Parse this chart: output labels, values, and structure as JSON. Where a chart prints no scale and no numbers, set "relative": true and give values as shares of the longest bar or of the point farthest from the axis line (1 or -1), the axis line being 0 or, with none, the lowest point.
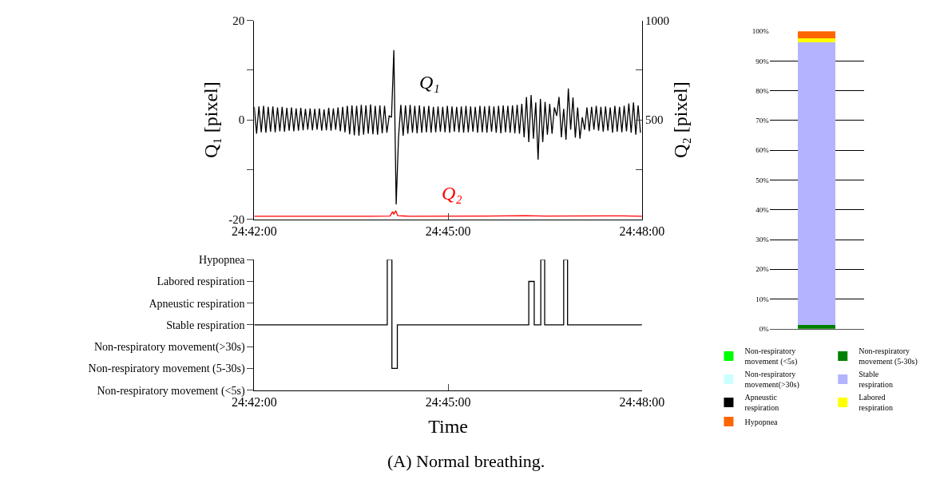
{
  "chart_data": [
    {
      "type": "line",
      "ylabel": "Q₁ [pixel]",
      "y2label": "Q₂ [pixel]",
      "xlim": [
        24.7,
        24.8
      ],
      "xticks": [
        {
          "value": 24.7,
          "label": "24:42:00"
        },
        {
          "value": 24.75,
          "label": "24:45:00"
        },
        {
          "value": 24.8,
          "label": "24:48:00"
        }
      ],
      "ylim": [
        -20,
        20
      ],
      "yticks": [
        -20,
        {
          "value": -10,
          "label": null
        },
        0,
        {
          "value": 10,
          "label": null
        },
        20
      ],
      "y2lim": [
        0,
        1000
      ],
      "y2ticks": [
        {
          "value": 0,
          "label": null
        },
        {
          "value": 250,
          "label": null
        },
        500,
        {
          "value": 750,
          "label": null
        },
        1000
      ],
      "series": [
        {
          "name": "Q₁",
          "color": "#000000",
          "x": [
            24.7,
            24.7006,
            24.7012,
            24.7018,
            24.7024,
            24.703,
            24.7036,
            24.7042,
            24.7048,
            24.7054,
            24.706,
            24.7066,
            24.7072,
            24.7078,
            24.7084,
            24.709,
            24.7096,
            24.7102,
            24.7108,
            24.7114,
            24.712,
            24.7126,
            24.7132,
            24.7138,
            24.7144,
            24.715,
            24.7156,
            24.7162,
            24.7168,
            24.7174,
            24.718,
            24.7186,
            24.7192,
            24.7198,
            24.7204,
            24.721,
            24.7216,
            24.7222,
            24.7228,
            24.7234,
            24.724,
            24.7246,
            24.7252,
            24.7258,
            24.7264,
            24.727,
            24.7276,
            24.7282,
            24.7288,
            24.7294,
            24.73,
            24.7306,
            24.7312,
            24.7318,
            24.7324,
            24.733,
            24.7336,
            24.7342,
            24.7348,
            24.7354,
            24.736,
            24.7366,
            24.7372,
            24.7378,
            24.7384,
            24.739,
            24.7396,
            24.7402,
            24.7408,
            24.7414,
            24.742,
            24.7426,
            24.7432,
            24.7438,
            24.7444,
            24.745,
            24.7456,
            24.7462,
            24.7468,
            24.7474,
            24.748,
            24.7486,
            24.7492,
            24.7498,
            24.7504,
            24.751,
            24.7516,
            24.7522,
            24.7528,
            24.7534,
            24.754,
            24.7546,
            24.7552,
            24.7558,
            24.7564,
            24.757,
            24.7576,
            24.7582,
            24.7588,
            24.7594,
            24.76,
            24.7606,
            24.7612,
            24.7618,
            24.7624,
            24.763,
            24.7636,
            24.7642,
            24.7648,
            24.7654,
            24.766,
            24.7666,
            24.7672,
            24.7678,
            24.7684,
            24.769,
            24.7696,
            24.7702,
            24.7708,
            24.7714,
            24.772,
            24.7726,
            24.7732,
            24.7738,
            24.7744,
            24.775,
            24.7756,
            24.7762,
            24.7768,
            24.7774,
            24.778,
            24.7786,
            24.7792,
            24.7798,
            24.7804,
            24.781,
            24.7816,
            24.7822,
            24.7828,
            24.7834,
            24.784,
            24.7846,
            24.7852,
            24.7858,
            24.7864,
            24.787,
            24.7876,
            24.7882,
            24.7888,
            24.7894,
            24.79,
            24.7906,
            24.7912,
            24.7918,
            24.7924,
            24.793,
            24.7936,
            24.7942,
            24.7948,
            24.7954,
            24.796,
            24.7966,
            24.7972,
            24.7978,
            24.7984,
            24.799,
            24.7996
          ],
          "values": [
            2.6,
            -2.8,
            2.7,
            -2.5,
            2.8,
            -2.6,
            2.6,
            -2.4,
            2.7,
            -2.5,
            2.5,
            -2.3,
            2.6,
            -2.4,
            2.4,
            -2.2,
            2.5,
            -2.3,
            2.3,
            -2.2,
            2.4,
            -2.1,
            2.2,
            -2.0,
            2.3,
            -2.1,
            2.2,
            -2.0,
            2.3,
            -2.2,
            2.1,
            -2.1,
            2.4,
            -2.2,
            2.3,
            -2.0,
            2.5,
            -2.3,
            2.6,
            -2.5,
            2.8,
            -2.9,
            2.9,
            -3.1,
            2.8,
            -3.2,
            3.0,
            -3.0,
            2.9,
            -2.8,
            3.1,
            -2.9,
            2.8,
            -3.0,
            2.9,
            -2.7,
            2.8,
            -2.6,
            0.8,
            0.5,
            14,
            -17,
            -3.6,
            3.0,
            -3.2,
            2.9,
            -2.8,
            3.0,
            -2.6,
            2.8,
            -2.7,
            2.9,
            -2.6,
            2.7,
            -2.5,
            2.8,
            -2.6,
            2.6,
            -2.5,
            2.7,
            -2.4,
            2.6,
            -2.5,
            2.8,
            -2.6,
            2.7,
            -2.4,
            2.6,
            -2.5,
            2.7,
            -2.6,
            2.8,
            -2.5,
            2.7,
            -2.4,
            2.6,
            -2.6,
            2.8,
            -2.5,
            2.7,
            -2.6,
            2.8,
            -2.4,
            2.7,
            -2.6,
            2.8,
            -2.7,
            2.9,
            -2.5,
            2.8,
            -2.6,
            2.9,
            -2.7,
            3.0,
            -2.8,
            3.2,
            -3.5,
            4.6,
            -4.5,
            5.0,
            -3.8,
            3.5,
            -8.0,
            4.2,
            -4.5,
            3.6,
            -3.0,
            3.2,
            -2.8,
            2.5,
            0.8,
            4.6,
            -3.5,
            2.2,
            -4.0,
            6.3,
            -2.0,
            4.5,
            -3.6,
            2.5,
            -3.8,
            0.5,
            -2.0,
            2.5,
            -2.3,
            2.6,
            -2.0,
            2.8,
            -2.2,
            2.6,
            -2.4,
            2.7,
            -2.2,
            2.5,
            -2.6,
            2.8,
            -2.4,
            2.6,
            -2.5,
            2.8,
            -2.3,
            3.3,
            -2.6,
            3.5,
            -3.0,
            2.9,
            -2.6
          ]
        },
        {
          "name": "Q₂",
          "color": "#ff0000",
          "axis": "y2",
          "x": [
            24.7,
            24.73,
            24.735,
            24.7357,
            24.736,
            24.7365,
            24.737,
            24.74,
            24.76,
            24.77,
            24.775,
            24.795,
            24.8
          ],
          "values": [
            15,
            15,
            16,
            38,
            25,
            43,
            18,
            15,
            16,
            18,
            16,
            17,
            15
          ]
        }
      ]
    },
    {
      "type": "step",
      "xlabel": "Time",
      "color": "#000000",
      "x": [
        24.7,
        24.7343,
        24.7355,
        24.7369,
        24.7708,
        24.7722,
        24.7739,
        24.7749,
        24.7798,
        24.7808,
        24.8
      ],
      "relative": true,
      "values": [
        0.5,
        1,
        0.167,
        0.5,
        0.833,
        0.5,
        1,
        0.5,
        1,
        0.5,
        0.5
      ],
      "xlim": [
        24.7,
        24.8
      ],
      "xticks": [
        {
          "value": 24.7,
          "label": "24:42:00"
        },
        {
          "value": 24.75,
          "label": "24:45:00"
        },
        {
          "value": 24.8,
          "label": "24:48:00"
        }
      ],
      "y_categories": [
        "Hypopnea",
        "Labored respiration",
        "Apneustic respiration",
        "Stable respiration",
        "Non-respiratory movement(>30s)",
        "Non-respiratory movement (5-30s)",
        "Non-respiratory movement (<5s)"
      ],
      "annotations": [
        "(A) Normal breathing."
      ]
    },
    {
      "type": "bar",
      "stacked": true,
      "categories": [
        null
      ],
      "grid": "y",
      "legend": "bottom",
      "ylim": [
        0,
        100
      ],
      "yticks": [
        {
          "value": 0,
          "label": "0%"
        },
        {
          "value": 10,
          "label": "10%"
        },
        {
          "value": 20,
          "label": "20%"
        },
        {
          "value": 30,
          "label": "30%"
        },
        {
          "value": 40,
          "label": "40%"
        },
        {
          "value": 50,
          "label": "50%"
        },
        {
          "value": 60,
          "label": "60%"
        },
        {
          "value": 70,
          "label": "70%"
        },
        {
          "value": 80,
          "label": "80%"
        },
        {
          "value": 90,
          "label": "90%"
        },
        {
          "value": 100,
          "label": "100%"
        }
      ],
      "series": [
        {
          "name": "Non-respiratory movement (<5s)",
          "color": "#00ff00",
          "values": [
            0
          ]
        },
        {
          "name": "Non-respiratory movement (5-30s)",
          "color": "#008000",
          "values": [
            1.3
          ]
        },
        {
          "name": "Non-respiratory movement(>30s)",
          "color": "#ccffff",
          "values": [
            0
          ]
        },
        {
          "name": "Stable respiration",
          "color": "#b3b3ff",
          "values": [
            95.1
          ]
        },
        {
          "name": "Apneustic respiration",
          "color": "#000000",
          "values": [
            0
          ]
        },
        {
          "name": "Labored respiration",
          "color": "#ffff00",
          "values": [
            1.2
          ]
        },
        {
          "name": "Hypopnea",
          "color": "#ff6600",
          "values": [
            2.4
          ]
        }
      ]
    }
  ]
}
